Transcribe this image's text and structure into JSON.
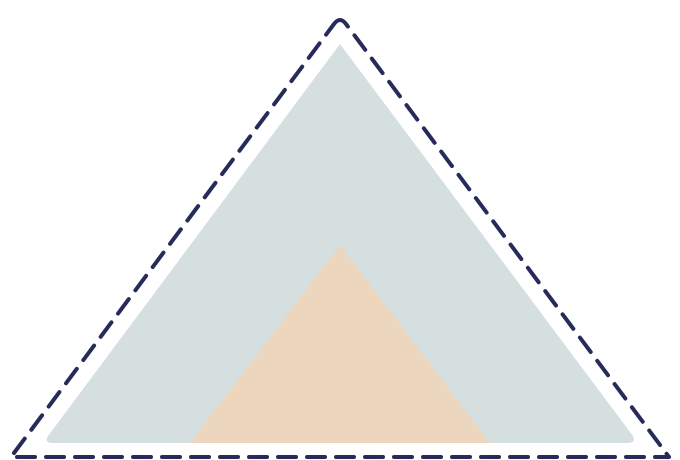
{
  "diagram": {
    "type": "nested-triangles",
    "colors": {
      "background": "#ffffff",
      "outline": "#262b5a",
      "outer_fill": "#d5dfe0",
      "inner_fill": "#ecd6bd"
    },
    "shapes": [
      {
        "name": "outer-dashed-outline",
        "style": "dashed"
      },
      {
        "name": "middle-triangle",
        "style": "filled"
      },
      {
        "name": "inner-triangle",
        "style": "filled"
      }
    ]
  }
}
